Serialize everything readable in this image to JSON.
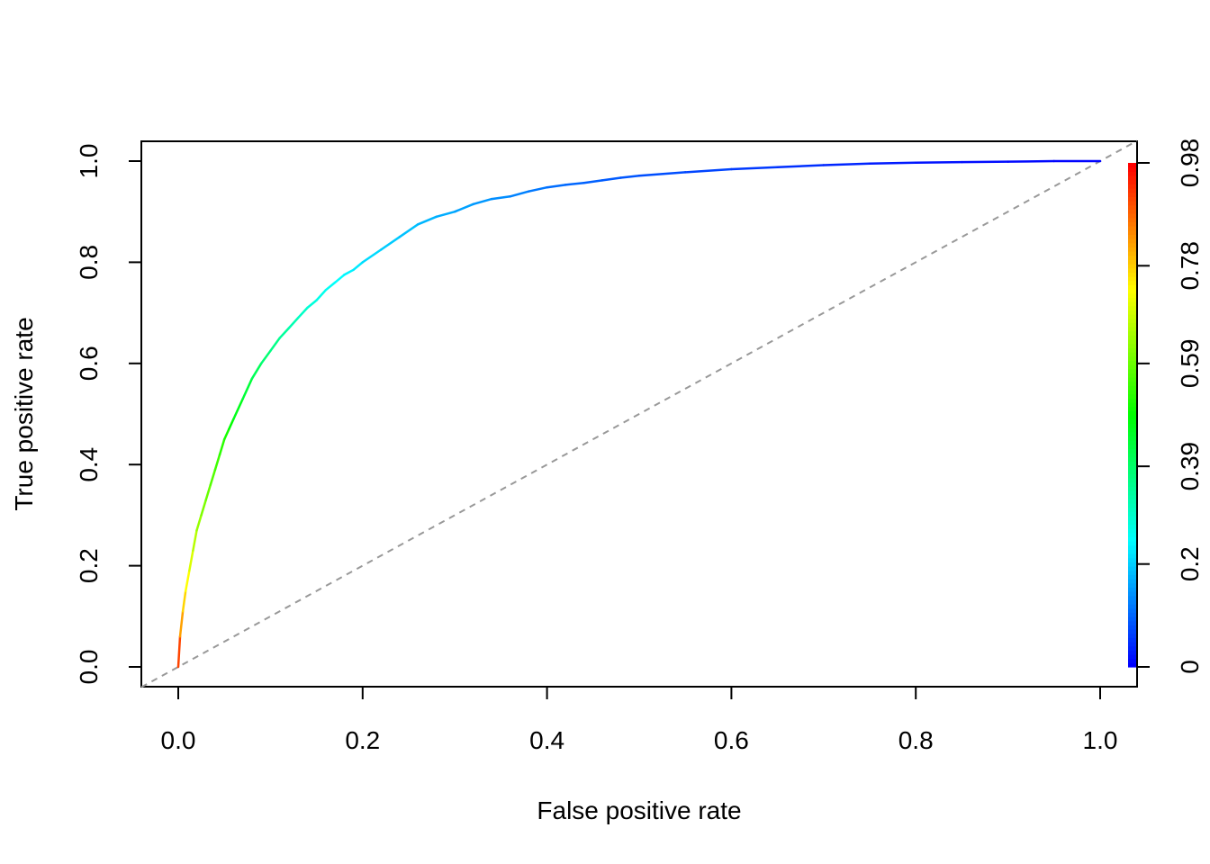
{
  "chart_data": {
    "type": "line",
    "title": "",
    "xlabel": "False positive rate",
    "ylabel": "True positive rate",
    "xlim": [
      0,
      1
    ],
    "ylim": [
      0,
      1
    ],
    "x_ticks": [
      "0.0",
      "0.2",
      "0.4",
      "0.6",
      "0.8",
      "1.0"
    ],
    "y_ticks": [
      "0.0",
      "0.2",
      "0.4",
      "0.6",
      "0.8",
      "1.0"
    ],
    "colorbar": {
      "tick_labels": [
        "0",
        "0.2",
        "0.39",
        "0.59",
        "0.78",
        "0.98"
      ],
      "tick_values": [
        0,
        0.2,
        0.39,
        0.59,
        0.78,
        0.98
      ],
      "colormap": "rainbow (blue to red)"
    },
    "grid": false,
    "reference_line": {
      "from": [
        0,
        0
      ],
      "to": [
        1,
        1
      ],
      "style": "dashed",
      "color": "#999999"
    },
    "series": [
      {
        "x": [
          0,
          0.002,
          0.005,
          0.008,
          0.012,
          0.016,
          0.02,
          0.025,
          0.03,
          0.035,
          0.04,
          0.045,
          0.05,
          0.055,
          0.06,
          0.07,
          0.08,
          0.09,
          0.1,
          0.11,
          0.12,
          0.13,
          0.14,
          0.15,
          0.16,
          0.17,
          0.18,
          0.19,
          0.2,
          0.22,
          0.24,
          0.26,
          0.28,
          0.3,
          0.32,
          0.34,
          0.36,
          0.38,
          0.4,
          0.42,
          0.44,
          0.46,
          0.48,
          0.5,
          0.55,
          0.6,
          0.65,
          0.7,
          0.75,
          0.8,
          0.85,
          0.9,
          0.95,
          1.0
        ],
        "y": [
          0,
          0.06,
          0.11,
          0.15,
          0.19,
          0.23,
          0.27,
          0.3,
          0.33,
          0.36,
          0.39,
          0.42,
          0.45,
          0.47,
          0.49,
          0.53,
          0.57,
          0.6,
          0.625,
          0.65,
          0.67,
          0.69,
          0.71,
          0.725,
          0.745,
          0.76,
          0.775,
          0.785,
          0.8,
          0.825,
          0.85,
          0.875,
          0.89,
          0.9,
          0.915,
          0.925,
          0.93,
          0.94,
          0.948,
          0.953,
          0.957,
          0.962,
          0.967,
          0.971,
          0.978,
          0.984,
          0.988,
          0.992,
          0.995,
          0.997,
          0.998,
          0.999,
          1.0,
          1.0
        ],
        "cutoff": [
          0.98,
          0.85,
          0.8,
          0.75,
          0.72,
          0.68,
          0.65,
          0.62,
          0.6,
          0.58,
          0.56,
          0.54,
          0.52,
          0.5,
          0.48,
          0.45,
          0.42,
          0.39,
          0.37,
          0.35,
          0.33,
          0.31,
          0.29,
          0.27,
          0.26,
          0.25,
          0.24,
          0.23,
          0.22,
          0.2,
          0.19,
          0.18,
          0.17,
          0.16,
          0.15,
          0.14,
          0.13,
          0.12,
          0.11,
          0.1,
          0.095,
          0.09,
          0.085,
          0.08,
          0.07,
          0.06,
          0.05,
          0.04,
          0.03,
          0.02,
          0.015,
          0.01,
          0.005,
          0
        ]
      }
    ]
  }
}
